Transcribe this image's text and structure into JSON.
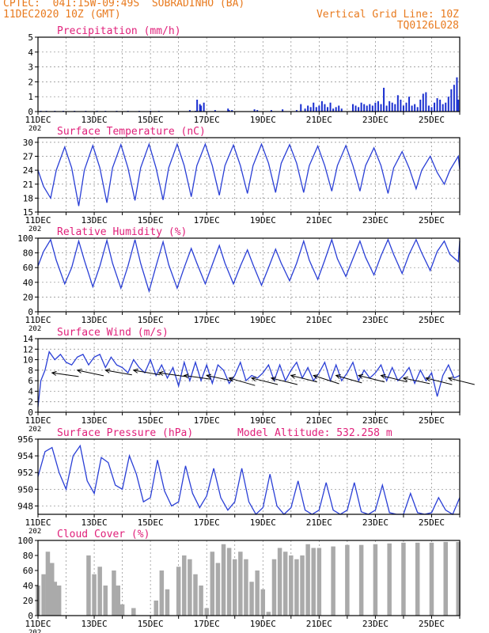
{
  "header": {
    "line1": "CPTEC:  041:15W-09:49S  SOBRADINHO (BA)",
    "line2": "11DEC2020 10Z (GMT)",
    "right1": "Vertical Grid Line: 10Z",
    "right2": "TQ0126L028"
  },
  "colors": {
    "header": "#e87a1e",
    "title": "#e0207a",
    "line": "#2a3fd6",
    "bar": "#1a2fd0",
    "cloud": "#aaaaaa",
    "axis": "#000000",
    "grid": "#888888"
  },
  "x_axis": {
    "tick_labels": [
      "11DEC",
      "13DEC",
      "15DEC",
      "17DEC",
      "19DEC",
      "21DEC",
      "23DEC",
      "25DEC"
    ],
    "year_fragment": "202",
    "range_days": [
      0,
      15
    ]
  },
  "chart_data": [
    {
      "id": "precip",
      "type": "bar",
      "title": "Precipitation (mm/h)",
      "ylim": [
        0,
        5
      ],
      "yticks": [
        0,
        1,
        2,
        3,
        4,
        5
      ],
      "grid": true,
      "x_unit": "days since 11DEC2020 10Z",
      "x": [
        0.1,
        0.3,
        0.6,
        0.9,
        1.3,
        1.7,
        2.1,
        2.4,
        2.8,
        3.2,
        3.6,
        4.0,
        4.3,
        5.4,
        5.6,
        5.66,
        5.76,
        5.8,
        5.9,
        6.3,
        6.76,
        6.8,
        6.9,
        7.7,
        7.8,
        8.3,
        8.7,
        9.2,
        9.35,
        9.5,
        9.6,
        9.7,
        9.8,
        9.9,
        10.0,
        10.1,
        10.2,
        10.3,
        10.4,
        10.5,
        10.6,
        10.7,
        10.8,
        11.2,
        11.3,
        11.4,
        11.5,
        11.6,
        11.7,
        11.8,
        11.9,
        12.0,
        12.1,
        12.2,
        12.3,
        12.4,
        12.5,
        12.6,
        12.7,
        12.8,
        12.9,
        13.0,
        13.1,
        13.2,
        13.3,
        13.4,
        13.5,
        13.6,
        13.7,
        13.8,
        13.9,
        14.0,
        14.1,
        14.2,
        14.3,
        14.4,
        14.5,
        14.6,
        14.7,
        14.8,
        14.9,
        14.95
      ],
      "values": [
        0.05,
        0.05,
        0.05,
        0.05,
        0.05,
        0.05,
        0.05,
        0.05,
        0.05,
        0.05,
        0.05,
        0.05,
        0.05,
        0.1,
        0.05,
        0.8,
        0.5,
        0.4,
        0.6,
        0.1,
        0.2,
        0.1,
        0.1,
        0.15,
        0.1,
        0.1,
        0.15,
        0.1,
        0.5,
        0.2,
        0.4,
        0.3,
        0.6,
        0.3,
        0.4,
        0.7,
        0.5,
        0.3,
        0.6,
        0.2,
        0.3,
        0.4,
        0.2,
        0.5,
        0.4,
        0.3,
        0.6,
        0.5,
        0.4,
        0.5,
        0.4,
        0.6,
        0.7,
        0.5,
        1.6,
        0.4,
        0.7,
        0.6,
        0.5,
        1.1,
        0.8,
        0.4,
        0.6,
        1.0,
        0.4,
        0.5,
        0.3,
        0.8,
        1.2,
        1.3,
        0.4,
        0.3,
        0.6,
        0.9,
        0.8,
        0.5,
        0.6,
        1.0,
        1.5,
        1.8,
        2.3,
        0.8
      ]
    },
    {
      "id": "temp",
      "type": "line",
      "title": "Surface Temperature (nC)",
      "ylim": [
        15,
        31
      ],
      "yticks": [
        15,
        18,
        21,
        24,
        27,
        30
      ],
      "grid": true,
      "x_unit": "days since 11DEC2020 10Z",
      "x": [
        0,
        0.2,
        0.45,
        0.65,
        0.95,
        1.2,
        1.45,
        1.65,
        1.95,
        2.2,
        2.45,
        2.65,
        2.95,
        3.2,
        3.45,
        3.65,
        3.95,
        4.2,
        4.45,
        4.65,
        4.95,
        5.2,
        5.45,
        5.65,
        5.95,
        6.2,
        6.45,
        6.65,
        6.95,
        7.2,
        7.45,
        7.65,
        7.95,
        8.2,
        8.45,
        8.65,
        8.95,
        9.2,
        9.45,
        9.65,
        9.95,
        10.2,
        10.45,
        10.65,
        10.95,
        11.2,
        11.45,
        11.65,
        11.95,
        12.2,
        12.45,
        12.65,
        12.95,
        13.2,
        13.45,
        13.65,
        13.95,
        14.2,
        14.45,
        14.65,
        14.95,
        15.0
      ],
      "values": [
        24,
        20.5,
        18,
        24,
        29,
        24.5,
        16.3,
        24,
        29.3,
        24.5,
        17,
        24.5,
        29.5,
        24.5,
        17.5,
        24.5,
        29.6,
        24.5,
        17.6,
        24.5,
        29.6,
        25,
        18.3,
        25,
        29.6,
        25,
        18.6,
        25,
        29.4,
        25,
        19,
        25,
        29.6,
        25.5,
        19.2,
        25.5,
        29.5,
        25.5,
        19.2,
        25,
        29.2,
        25,
        19.5,
        25,
        29.3,
        25,
        19.5,
        25,
        28.8,
        25,
        19,
        24.5,
        28,
        24.5,
        20,
        24,
        27,
        23.5,
        21,
        24,
        27,
        24.2
      ]
    },
    {
      "id": "rh",
      "type": "line",
      "title": "Relative Humidity (%)",
      "ylim": [
        0,
        100
      ],
      "yticks": [
        0,
        20,
        40,
        60,
        80,
        100
      ],
      "grid": true,
      "x_unit": "days since 11DEC2020 10Z",
      "x": [
        0,
        0.2,
        0.45,
        0.65,
        0.95,
        1.2,
        1.45,
        1.65,
        1.95,
        2.2,
        2.45,
        2.65,
        2.95,
        3.2,
        3.45,
        3.65,
        3.95,
        4.2,
        4.45,
        4.65,
        4.95,
        5.2,
        5.45,
        5.65,
        5.95,
        6.2,
        6.45,
        6.65,
        6.95,
        7.2,
        7.45,
        7.65,
        7.95,
        8.2,
        8.45,
        8.65,
        8.95,
        9.2,
        9.45,
        9.65,
        9.95,
        10.2,
        10.45,
        10.65,
        10.95,
        11.2,
        11.45,
        11.65,
        11.95,
        12.2,
        12.45,
        12.65,
        12.95,
        13.2,
        13.45,
        13.65,
        13.95,
        14.2,
        14.45,
        14.65,
        14.95,
        15.0
      ],
      "values": [
        62,
        82,
        98,
        70,
        38,
        60,
        96,
        70,
        34,
        62,
        97,
        66,
        32,
        62,
        98,
        66,
        28,
        62,
        95,
        64,
        32,
        60,
        86,
        66,
        38,
        64,
        90,
        66,
        38,
        62,
        84,
        64,
        36,
        60,
        85,
        66,
        42,
        66,
        96,
        70,
        44,
        70,
        98,
        72,
        48,
        72,
        96,
        74,
        50,
        76,
        98,
        78,
        52,
        78,
        98,
        80,
        56,
        82,
        96,
        78,
        68,
        96
      ]
    },
    {
      "id": "wind",
      "type": "line",
      "title": "Surface Wind (m/s)",
      "ylim": [
        0,
        14
      ],
      "yticks": [
        0,
        2,
        4,
        6,
        8,
        10,
        12,
        14
      ],
      "grid": true,
      "x_unit": "days since 11DEC2020 10Z",
      "x": [
        0,
        0.1,
        0.25,
        0.4,
        0.6,
        0.8,
        1.0,
        1.2,
        1.4,
        1.6,
        1.8,
        2.0,
        2.2,
        2.4,
        2.6,
        2.8,
        3.0,
        3.2,
        3.4,
        3.6,
        3.8,
        4.0,
        4.2,
        4.4,
        4.6,
        4.8,
        5.0,
        5.2,
        5.4,
        5.6,
        5.8,
        6.0,
        6.2,
        6.4,
        6.6,
        6.8,
        7.0,
        7.2,
        7.4,
        7.6,
        7.8,
        8.0,
        8.2,
        8.4,
        8.6,
        8.8,
        9.0,
        9.2,
        9.4,
        9.6,
        9.8,
        10.0,
        10.2,
        10.4,
        10.6,
        10.8,
        11.0,
        11.2,
        11.4,
        11.6,
        11.8,
        12.0,
        12.2,
        12.4,
        12.6,
        12.8,
        13.0,
        13.2,
        13.4,
        13.6,
        13.8,
        14.0,
        14.2,
        14.4,
        14.6,
        14.8,
        15.0
      ],
      "values": [
        1,
        6,
        8,
        11.5,
        10,
        11,
        9.5,
        9,
        10.5,
        11,
        9,
        10.5,
        11,
        8.5,
        10.5,
        9,
        8.5,
        7.5,
        10,
        8.5,
        7.5,
        10,
        7,
        9,
        6.5,
        8.5,
        5,
        9.5,
        6,
        9.5,
        6,
        9,
        5.5,
        9,
        8,
        5.5,
        7,
        9.5,
        6,
        7,
        6.5,
        7.5,
        9,
        6,
        9,
        6,
        8,
        9.5,
        6.5,
        8.5,
        6,
        7.5,
        9.5,
        6,
        9,
        6,
        7.5,
        9.5,
        6,
        8,
        6.5,
        7.5,
        9,
        6,
        8.5,
        6,
        7,
        8.5,
        5.5,
        8,
        6,
        7.5,
        3,
        7,
        9,
        6.5,
        7
      ],
      "arrows": {
        "x": [
          0.5,
          1.4,
          2.4,
          3.4,
          4.3,
          5.2,
          6.0,
          6.8,
          7.6,
          8.3,
          9.0,
          9.8,
          10.6,
          11.4,
          12.2,
          13.0,
          13.8,
          14.6
        ],
        "speed": [
          7.5,
          8,
          8,
          8,
          7.5,
          7,
          7,
          6.5,
          6.5,
          6.5,
          7,
          7,
          7,
          7,
          7,
          6.5,
          6.5,
          6.5
        ],
        "angle_deg": [
          -8,
          -12,
          -10,
          -10,
          -8,
          -8,
          -12,
          -16,
          -14,
          -14,
          -14,
          -18,
          -16,
          -14,
          -14,
          -12,
          -14,
          -14
        ]
      }
    },
    {
      "id": "press",
      "type": "line",
      "title": "Surface Pressure (hPa)",
      "subtitle": "Model Altitude: 532.258 m",
      "ylim": [
        947,
        956
      ],
      "yticks": [
        948,
        950,
        952,
        954,
        956
      ],
      "grid": true,
      "x_unit": "days since 11DEC2020 10Z",
      "x": [
        0,
        0.25,
        0.5,
        0.75,
        1.0,
        1.25,
        1.5,
        1.75,
        2.0,
        2.25,
        2.5,
        2.75,
        3.0,
        3.25,
        3.5,
        3.75,
        4.0,
        4.25,
        4.5,
        4.75,
        5.0,
        5.25,
        5.5,
        5.75,
        6.0,
        6.25,
        6.5,
        6.75,
        7.0,
        7.25,
        7.5,
        7.75,
        8.0,
        8.25,
        8.5,
        8.75,
        9.0,
        9.25,
        9.5,
        9.75,
        10.0,
        10.25,
        10.5,
        10.75,
        11.0,
        11.25,
        11.5,
        11.75,
        12.0,
        12.25,
        12.5,
        12.75,
        13.0,
        13.25,
        13.5,
        13.75,
        14.0,
        14.25,
        14.5,
        14.75,
        15.0
      ],
      "values": [
        951.5,
        954.5,
        955,
        952,
        950,
        954,
        955.2,
        951,
        949.5,
        953.8,
        953.2,
        950.5,
        950,
        954,
        951.8,
        948.5,
        949,
        953.5,
        949.8,
        948,
        948.5,
        952.8,
        949.5,
        947.8,
        949.2,
        952.5,
        949,
        947.5,
        948.5,
        952.5,
        948.5,
        946.8,
        947.8,
        951.8,
        948,
        946.8,
        947.8,
        951,
        947.5,
        946.5,
        947.5,
        950.8,
        947.5,
        946.5,
        947.5,
        950.8,
        947.3,
        946.5,
        947.5,
        950.5,
        947.2,
        946.5,
        947,
        949.5,
        947.2,
        946.3,
        947.2,
        949,
        947.5,
        946.8,
        949
      ]
    },
    {
      "id": "cloud",
      "type": "bar",
      "title": "Cloud Cover (%)",
      "ylim": [
        0,
        100
      ],
      "yticks": [
        0,
        20,
        40,
        60,
        80,
        100
      ],
      "grid": false,
      "x_unit": "days since 11DEC2020 10Z",
      "x": [
        0,
        0.2,
        0.35,
        0.5,
        0.6,
        0.75,
        0.9,
        1.0,
        1.2,
        1.3,
        1.5,
        1.65,
        1.8,
        2.0,
        2.2,
        2.4,
        2.6,
        2.7,
        2.85,
        3.0,
        3.2,
        3.4,
        3.6,
        3.8,
        4.0,
        4.2,
        4.4,
        4.6,
        4.8,
        5.0,
        5.2,
        5.4,
        5.6,
        5.8,
        6.0,
        6.2,
        6.4,
        6.6,
        6.8,
        7.0,
        7.2,
        7.4,
        7.6,
        7.8,
        8.0,
        8.2,
        8.4,
        8.6,
        8.8,
        9.0,
        9.2,
        9.4,
        9.6,
        9.8,
        10.0,
        10.5,
        11.0,
        11.5,
        12.0,
        12.5,
        13.0,
        13.5,
        14.0,
        14.5,
        14.95
      ],
      "values": [
        40,
        55,
        85,
        70,
        45,
        40,
        0,
        0,
        0,
        0,
        0,
        0,
        80,
        55,
        65,
        40,
        0,
        60,
        40,
        15,
        0,
        10,
        0,
        0,
        0,
        20,
        60,
        35,
        0,
        65,
        80,
        75,
        55,
        40,
        10,
        85,
        70,
        95,
        90,
        75,
        85,
        75,
        45,
        60,
        35,
        5,
        75,
        90,
        85,
        80,
        75,
        80,
        95,
        90,
        90,
        92,
        94,
        94,
        95,
        96,
        97,
        97,
        97,
        98,
        98
      ]
    }
  ]
}
